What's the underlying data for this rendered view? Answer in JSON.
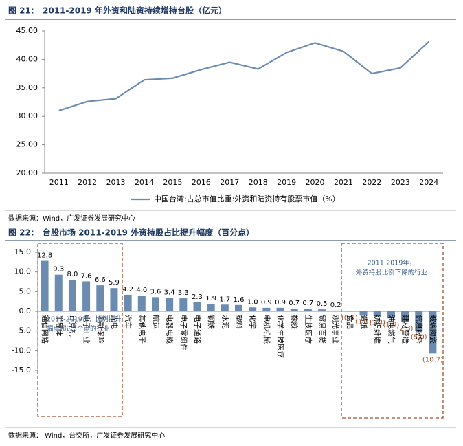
{
  "chart_data": [
    {
      "type": "line",
      "figure_label": "图 21:",
      "title": "2011-2019 年外资和陆资持续增持台股（亿元）",
      "categories": [
        "2011",
        "2012",
        "2013",
        "2014",
        "2015",
        "2016",
        "2017",
        "2018",
        "2019",
        "2020",
        "2021",
        "2022",
        "2023",
        "2024"
      ],
      "series": [
        {
          "name": "中国台湾:占总市值比重:外资和陆资持有股票市值（%）",
          "color": "#6b8cb0",
          "values": [
            31.0,
            32.6,
            33.1,
            36.4,
            36.7,
            38.2,
            39.5,
            38.3,
            41.2,
            42.9,
            41.4,
            37.5,
            38.5,
            43.1
          ]
        }
      ],
      "ylim": [
        20,
        45
      ],
      "yticks": [
        {
          "value": 20,
          "label": "20.00"
        },
        {
          "value": 25,
          "label": "25.00"
        },
        {
          "value": 30,
          "label": "30.00"
        },
        {
          "value": 35,
          "label": "35.00"
        },
        {
          "value": 40,
          "label": "40.00"
        },
        {
          "value": 45,
          "label": "45.00"
        }
      ],
      "legend": "bottom",
      "source": "数据来源：Wind，广发证券发展研究中心"
    },
    {
      "type": "bar",
      "figure_label": "图 22:",
      "title": "台股市场 2011-2019 外资持股占比提升幅度（百分点）",
      "categories": [
        "通信网路",
        "半导体",
        "计算机",
        "电子工业",
        "金融保险",
        "光电",
        "汽车",
        "其他电子",
        "航运",
        "电器电缆",
        "电子零组件",
        "电子通路",
        "钢铁",
        "水泥",
        "塑料",
        "化学",
        "电机机械",
        "化学生技医疗",
        "橡胶",
        "生技医疗",
        "贸易百货",
        "观光事业",
        "食品",
        "造纸",
        "纺织纤维",
        "油电燃气",
        "建材营造",
        "信息服务",
        "玻璃陶瓷"
      ],
      "values": [
        12.8,
        9.3,
        8.0,
        7.6,
        6.6,
        5.9,
        4.2,
        4.0,
        3.6,
        3.4,
        3.3,
        2.3,
        1.9,
        1.7,
        1.6,
        1.0,
        0.9,
        0.9,
        0.7,
        0.7,
        0.5,
        0.2,
        -0.1,
        -1.1,
        -1.3,
        -1.8,
        -2.8,
        -5.0,
        -10.7
      ],
      "value_labels": [
        "12.8",
        "9.3",
        "8.0",
        "7.6",
        "6.6",
        "5.9",
        "4.2",
        "4.0",
        "3.6",
        "3.4",
        "3.3",
        "2.3",
        "1.9",
        "1.7",
        "1.6",
        "1.0",
        "0.9",
        "0.9",
        "0.7",
        "0.7",
        "0.5",
        "0.2",
        "(0.1)",
        "(1.1)",
        "(1.3)",
        "(1.8)",
        "(2.8)",
        "(5.0)",
        "(10.7)"
      ],
      "color": "#6b8cb0",
      "negative_label_color": "#a0522d",
      "ylim": [
        -15,
        15
      ],
      "yticks": [
        {
          "value": 15,
          "label": "15.0"
        },
        {
          "value": 10,
          "label": "10.0"
        },
        {
          "value": 5,
          "label": "5.0"
        },
        {
          "value": 0,
          "label": "0.0"
        },
        {
          "value": -5,
          "label": "-5.0"
        },
        {
          "value": -10,
          "label": "-10.0"
        },
        {
          "value": -15,
          "label": "-15.0"
        }
      ],
      "annotations": [
        [
          "2011-2019年，比例提升",
          "幅度超过5个点的行业"
        ],
        [
          "2011-2019年，",
          "外资持股比例下降的行业"
        ]
      ],
      "source": "数据来源：   Wind，台交所，广发证券发展研究中心"
    }
  ]
}
